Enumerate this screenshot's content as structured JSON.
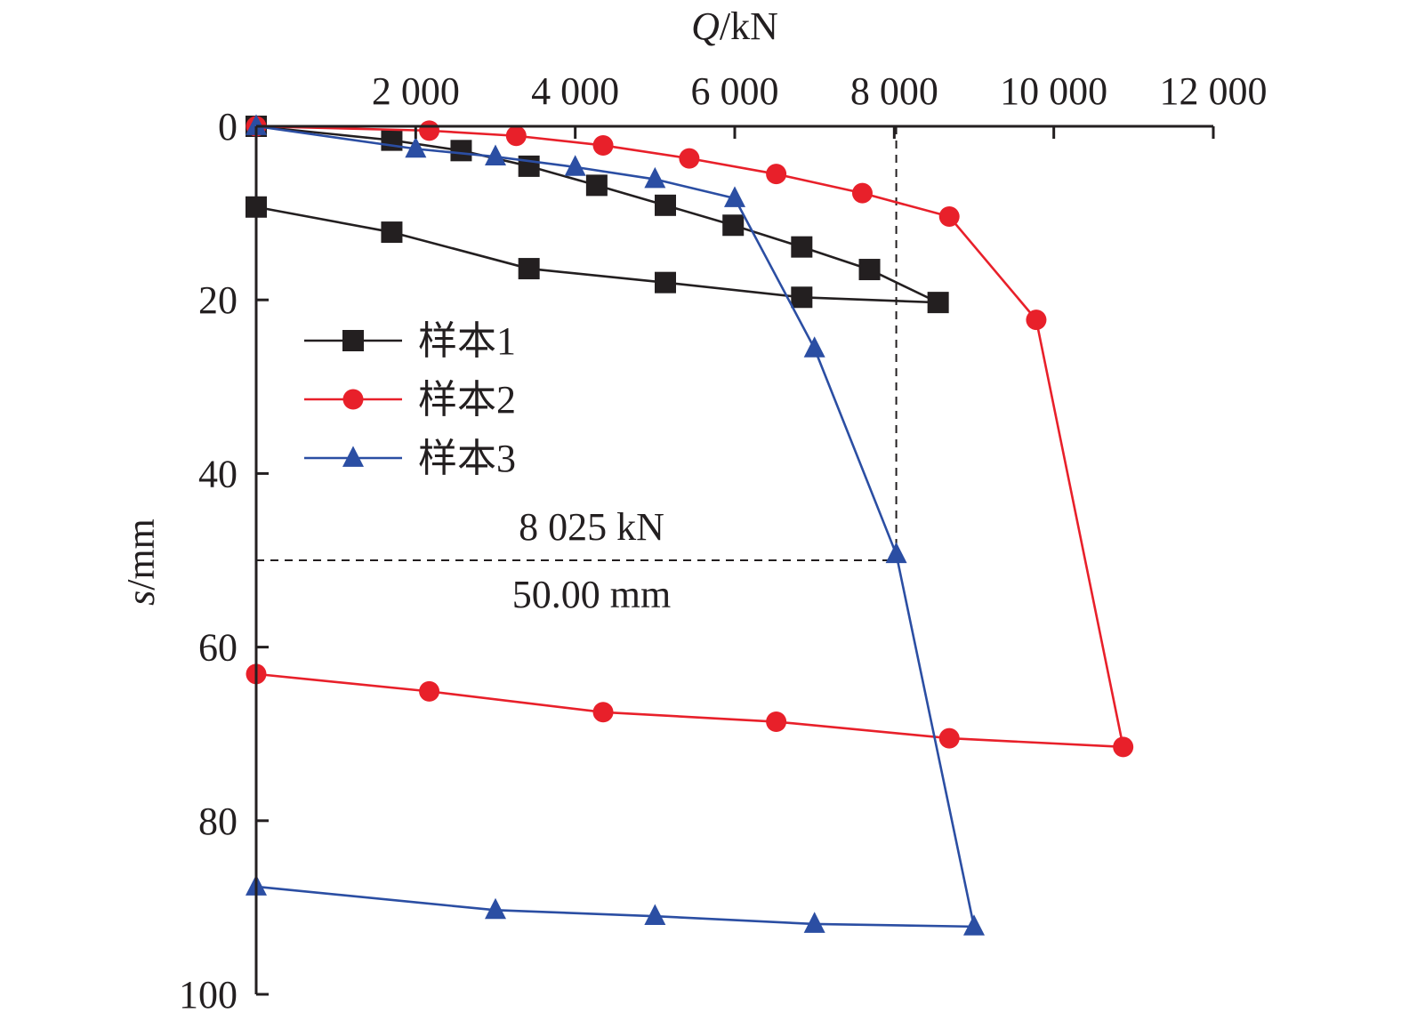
{
  "chart_data": {
    "type": "line",
    "xlabel": {
      "symbol": "Q",
      "unit": "/kN"
    },
    "ylabel": {
      "symbol": "s",
      "unit": "/mm"
    },
    "xlim": [
      0,
      12000
    ],
    "ylim": [
      0,
      100
    ],
    "y_inverted": true,
    "x_axis_position": "top",
    "x_ticks": [
      2000,
      4000,
      6000,
      8000,
      10000,
      12000
    ],
    "x_tick_labels": [
      "2 000",
      "4 000",
      "6 000",
      "8 000",
      "10 000",
      "12 000"
    ],
    "y_ticks": [
      0,
      20,
      40,
      60,
      80,
      100
    ],
    "y_tick_labels": [
      "0",
      "20",
      "40",
      "60",
      "80",
      "100"
    ],
    "grid": false,
    "legend_position": "left",
    "series": [
      {
        "name": "样本1",
        "color": "#231f20",
        "marker": "square",
        "x": [
          0,
          1700,
          2570,
          3420,
          4270,
          5130,
          5980,
          6840,
          7690,
          8550,
          6840,
          5130,
          3420,
          1700,
          0
        ],
        "y": [
          0,
          1.6,
          2.8,
          4.6,
          6.8,
          9.1,
          11.4,
          13.9,
          16.5,
          20.3,
          19.7,
          18.0,
          16.4,
          12.2,
          9.3
        ]
      },
      {
        "name": "样本2",
        "color": "#e8202a",
        "marker": "circle",
        "x": [
          0,
          2170,
          3260,
          4350,
          5430,
          6520,
          7600,
          8690,
          9780,
          10870,
          8690,
          6520,
          4350,
          2170,
          0
        ],
        "y": [
          0,
          0.5,
          1.1,
          2.2,
          3.7,
          5.5,
          7.7,
          10.4,
          22.3,
          71.5,
          70.5,
          68.6,
          67.5,
          65.1,
          63.1
        ]
      },
      {
        "name": "样本3",
        "color": "#2b4ea3",
        "marker": "triangle",
        "x": [
          0,
          2000,
          3000,
          4000,
          5000,
          6000,
          7000,
          8025,
          9000,
          7000,
          5000,
          3000,
          0
        ],
        "y": [
          0,
          2.6,
          3.5,
          4.7,
          6.1,
          8.3,
          25.6,
          49.3,
          92.2,
          91.9,
          91.0,
          90.3,
          87.6
        ]
      }
    ],
    "annotations": {
      "x_value_label": "8 025 kN",
      "y_value_label": "50.00 mm",
      "x_value": 8025,
      "y_value": 50
    }
  }
}
